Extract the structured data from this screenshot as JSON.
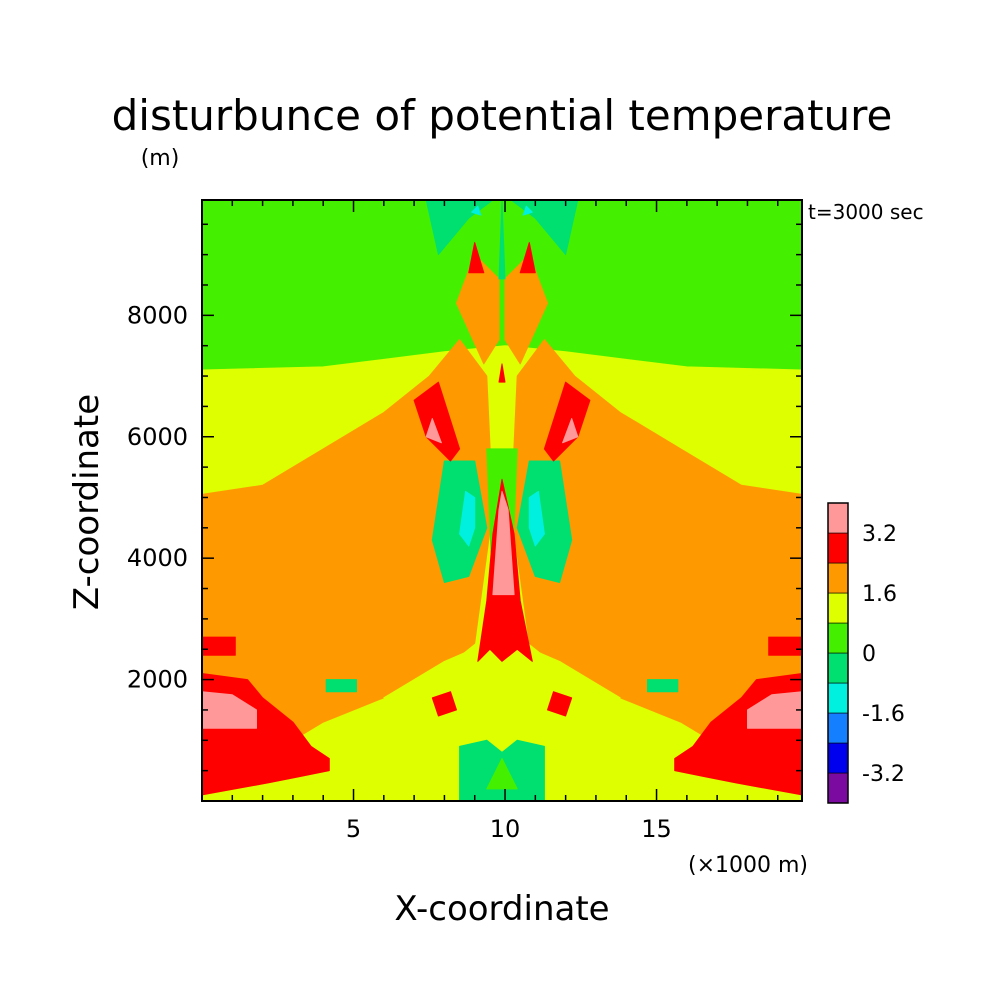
{
  "chart_data": {
    "type": "heatmap",
    "title": "disturbunce of potential temperature",
    "ylabel": "Z-coordinate",
    "yunit": "(m)",
    "xlabel": "X-coordinate",
    "xunit": "(×1000 m)",
    "annotation": "t=3000 sec",
    "xlim": [
      0,
      19.8
    ],
    "ylim": [
      0,
      9900
    ],
    "xticks": [
      5,
      10,
      15
    ],
    "xtick_labels": [
      "5",
      "10",
      "15"
    ],
    "yticks": [
      2000,
      4000,
      6000,
      8000
    ],
    "ytick_labels": [
      "2000",
      "4000",
      "6000",
      "8000"
    ],
    "grid": false,
    "colorbar": {
      "levels": [
        -4.0,
        -3.2,
        -2.4,
        -1.6,
        -0.8,
        0,
        0.8,
        1.6,
        2.4,
        3.2,
        4.0
      ],
      "labels": [
        "-3.2",
        "-1.6",
        "0",
        "1.6",
        "3.2"
      ],
      "label_values": [
        -3.2,
        -1.6,
        0,
        1.6,
        3.2
      ],
      "colors": [
        "#7a0aa0",
        "#0000ee",
        "#1480ff",
        "#00f0e0",
        "#00e070",
        "#44f000",
        "#ddff00",
        "#ff9900",
        "#ff0000",
        "#ff9999"
      ]
    },
    "regions": [
      {
        "value": 0.4,
        "shape": "rect",
        "x": [
          0,
          19.8
        ],
        "z": [
          0,
          9900
        ]
      },
      {
        "value": 1.2,
        "shape": "poly",
        "pts": [
          [
            0,
            0
          ],
          [
            19.8,
            0
          ],
          [
            19.8,
            7100
          ],
          [
            16,
            7150
          ],
          [
            12,
            7400
          ],
          [
            10,
            7500
          ],
          [
            8,
            7400
          ],
          [
            4,
            7150
          ],
          [
            0,
            7100
          ]
        ]
      },
      {
        "value": 2.0,
        "shape": "poly",
        "pts": [
          [
            0,
            200
          ],
          [
            0,
            5050
          ],
          [
            2,
            5200
          ],
          [
            4,
            5800
          ],
          [
            6,
            6400
          ],
          [
            7.5,
            7000
          ],
          [
            8.5,
            7600
          ],
          [
            9.4,
            7000
          ],
          [
            9.6,
            4800
          ],
          [
            9.0,
            2600
          ],
          [
            7.5,
            2000
          ],
          [
            6,
            1700
          ],
          [
            4,
            1300
          ],
          [
            3,
            1000
          ],
          [
            2.2,
            600
          ],
          [
            1.5,
            300
          ]
        ]
      },
      {
        "value": 2.0,
        "shape": "poly",
        "pts": [
          [
            19.8,
            200
          ],
          [
            19.8,
            5050
          ],
          [
            17.8,
            5200
          ],
          [
            15.8,
            5800
          ],
          [
            13.8,
            6400
          ],
          [
            12.3,
            7000
          ],
          [
            11.3,
            7600
          ],
          [
            10.4,
            7000
          ],
          [
            10.2,
            4800
          ],
          [
            10.8,
            2600
          ],
          [
            12.3,
            2000
          ],
          [
            13.8,
            1700
          ],
          [
            15.8,
            1300
          ],
          [
            16.8,
            1000
          ],
          [
            17.6,
            600
          ],
          [
            18.3,
            300
          ]
        ]
      },
      {
        "value": 2.0,
        "shape": "poly",
        "pts": [
          [
            8.4,
            8200
          ],
          [
            9.0,
            9000
          ],
          [
            9.8,
            8600
          ],
          [
            9.8,
            7600
          ],
          [
            9.3,
            7200
          ]
        ]
      },
      {
        "value": 2.0,
        "shape": "poly",
        "pts": [
          [
            11.4,
            8200
          ],
          [
            10.8,
            9000
          ],
          [
            10.0,
            8600
          ],
          [
            10.0,
            7600
          ],
          [
            10.5,
            7200
          ]
        ]
      },
      {
        "value": 0.4,
        "shape": "poly",
        "pts": [
          [
            9.4,
            5800
          ],
          [
            10.4,
            5800
          ],
          [
            10.2,
            3300
          ],
          [
            9.9,
            2800
          ],
          [
            9.6,
            3300
          ]
        ]
      },
      {
        "value": 1.2,
        "shape": "poly",
        "pts": [
          [
            6,
            1700
          ],
          [
            8,
            1500
          ],
          [
            9.4,
            1200
          ],
          [
            9.8,
            1800
          ],
          [
            9.4,
            2600
          ],
          [
            8.0,
            2300
          ]
        ]
      },
      {
        "value": 1.2,
        "shape": "poly",
        "pts": [
          [
            13.8,
            1700
          ],
          [
            11.8,
            1500
          ],
          [
            10.4,
            1200
          ],
          [
            10.0,
            1800
          ],
          [
            10.4,
            2600
          ],
          [
            11.8,
            2300
          ]
        ]
      },
      {
        "value": -0.4,
        "shape": "poly",
        "pts": [
          [
            7.6,
            4300
          ],
          [
            8.0,
            5600
          ],
          [
            9.0,
            5600
          ],
          [
            9.4,
            4500
          ],
          [
            8.8,
            3700
          ],
          [
            8.0,
            3600
          ]
        ]
      },
      {
        "value": -0.4,
        "shape": "poly",
        "pts": [
          [
            12.2,
            4300
          ],
          [
            11.8,
            5600
          ],
          [
            10.8,
            5600
          ],
          [
            10.4,
            4500
          ],
          [
            11.0,
            3700
          ],
          [
            11.8,
            3600
          ]
        ]
      },
      {
        "value": -1.2,
        "shape": "poly",
        "pts": [
          [
            8.5,
            4400
          ],
          [
            8.7,
            5100
          ],
          [
            9.0,
            5000
          ],
          [
            9.0,
            4500
          ],
          [
            8.8,
            4200
          ]
        ]
      },
      {
        "value": -1.2,
        "shape": "poly",
        "pts": [
          [
            11.3,
            4400
          ],
          [
            11.1,
            5100
          ],
          [
            10.8,
            5000
          ],
          [
            10.8,
            4500
          ],
          [
            11.0,
            4200
          ]
        ]
      },
      {
        "value": -0.4,
        "shape": "poly",
        "pts": [
          [
            4.1,
            2000
          ],
          [
            5.1,
            2000
          ],
          [
            5.1,
            1800
          ],
          [
            4.1,
            1800
          ]
        ]
      },
      {
        "value": -0.4,
        "shape": "poly",
        "pts": [
          [
            14.7,
            2000
          ],
          [
            15.7,
            2000
          ],
          [
            15.7,
            1800
          ],
          [
            14.7,
            1800
          ]
        ]
      },
      {
        "value": -0.4,
        "shape": "poly",
        "pts": [
          [
            8.5,
            0
          ],
          [
            8.5,
            900
          ],
          [
            9.4,
            1000
          ],
          [
            9.9,
            800
          ],
          [
            10.4,
            1000
          ],
          [
            11.3,
            900
          ],
          [
            11.3,
            0
          ]
        ]
      },
      {
        "value": 0.4,
        "shape": "poly",
        "pts": [
          [
            9.4,
            200
          ],
          [
            9.9,
            700
          ],
          [
            10.4,
            200
          ]
        ]
      },
      {
        "value": 2.8,
        "shape": "poly",
        "pts": [
          [
            0,
            100
          ],
          [
            0,
            2100
          ],
          [
            1.5,
            2000
          ],
          [
            2.0,
            1700
          ],
          [
            3.0,
            1300
          ],
          [
            3.6,
            900
          ],
          [
            4.2,
            700
          ],
          [
            4.2,
            500
          ],
          [
            3.2,
            400
          ],
          [
            2.2,
            300
          ]
        ]
      },
      {
        "value": 2.8,
        "shape": "poly",
        "pts": [
          [
            19.8,
            100
          ],
          [
            19.8,
            2100
          ],
          [
            18.3,
            2000
          ],
          [
            17.8,
            1700
          ],
          [
            16.8,
            1300
          ],
          [
            16.2,
            900
          ],
          [
            15.6,
            700
          ],
          [
            15.6,
            500
          ],
          [
            16.6,
            400
          ],
          [
            17.6,
            300
          ]
        ]
      },
      {
        "value": 3.6,
        "shape": "poly",
        "pts": [
          [
            0,
            1200
          ],
          [
            0,
            1800
          ],
          [
            1.0,
            1750
          ],
          [
            1.8,
            1500
          ],
          [
            1.8,
            1200
          ]
        ]
      },
      {
        "value": 3.6,
        "shape": "poly",
        "pts": [
          [
            19.8,
            1200
          ],
          [
            19.8,
            1800
          ],
          [
            18.8,
            1750
          ],
          [
            18.0,
            1500
          ],
          [
            18.0,
            1200
          ]
        ]
      },
      {
        "value": 2.8,
        "shape": "poly",
        "pts": [
          [
            0,
            2400
          ],
          [
            0,
            2700
          ],
          [
            1.1,
            2700
          ],
          [
            1.1,
            2400
          ]
        ]
      },
      {
        "value": 2.8,
        "shape": "poly",
        "pts": [
          [
            19.8,
            2400
          ],
          [
            19.8,
            2700
          ],
          [
            18.7,
            2700
          ],
          [
            18.7,
            2400
          ]
        ]
      },
      {
        "value": 2.8,
        "shape": "poly",
        "pts": [
          [
            9.1,
            2300
          ],
          [
            9.4,
            3300
          ],
          [
            9.6,
            4400
          ],
          [
            9.9,
            5300
          ],
          [
            10.3,
            4400
          ],
          [
            10.5,
            3300
          ],
          [
            10.9,
            2300
          ],
          [
            10.4,
            2500
          ],
          [
            9.9,
            2300
          ],
          [
            9.5,
            2500
          ]
        ]
      },
      {
        "value": 3.6,
        "shape": "poly",
        "pts": [
          [
            9.6,
            3400
          ],
          [
            9.8,
            4800
          ],
          [
            9.9,
            5100
          ],
          [
            10.1,
            4800
          ],
          [
            10.3,
            3400
          ]
        ]
      },
      {
        "value": 2.8,
        "shape": "poly",
        "pts": [
          [
            7.0,
            6600
          ],
          [
            7.8,
            6900
          ],
          [
            8.5,
            5800
          ],
          [
            8.2,
            5600
          ],
          [
            7.4,
            6000
          ]
        ]
      },
      {
        "value": 2.8,
        "shape": "poly",
        "pts": [
          [
            12.8,
            6600
          ],
          [
            12.0,
            6900
          ],
          [
            11.3,
            5800
          ],
          [
            11.6,
            5600
          ],
          [
            12.4,
            6000
          ]
        ]
      },
      {
        "value": 3.6,
        "shape": "poly",
        "pts": [
          [
            7.4,
            6000
          ],
          [
            7.6,
            6300
          ],
          [
            7.9,
            5900
          ]
        ]
      },
      {
        "value": 3.6,
        "shape": "poly",
        "pts": [
          [
            12.4,
            6000
          ],
          [
            12.2,
            6300
          ],
          [
            11.9,
            5900
          ]
        ]
      },
      {
        "value": 2.8,
        "shape": "poly",
        "pts": [
          [
            8.8,
            8700
          ],
          [
            9.0,
            9200
          ],
          [
            9.3,
            8700
          ]
        ]
      },
      {
        "value": 2.8,
        "shape": "poly",
        "pts": [
          [
            11.0,
            8700
          ],
          [
            10.8,
            9200
          ],
          [
            10.5,
            8700
          ]
        ]
      },
      {
        "value": 2.8,
        "shape": "poly",
        "pts": [
          [
            7.6,
            1700
          ],
          [
            8.2,
            1800
          ],
          [
            8.4,
            1500
          ],
          [
            7.8,
            1400
          ]
        ]
      },
      {
        "value": 2.8,
        "shape": "poly",
        "pts": [
          [
            12.2,
            1700
          ],
          [
            11.6,
            1800
          ],
          [
            11.4,
            1500
          ],
          [
            12.0,
            1400
          ]
        ]
      },
      {
        "value": -0.4,
        "shape": "poly",
        "pts": [
          [
            7.4,
            9900
          ],
          [
            7.8,
            9000
          ],
          [
            8.8,
            9600
          ],
          [
            9.6,
            9900
          ]
        ]
      },
      {
        "value": -0.4,
        "shape": "poly",
        "pts": [
          [
            12.4,
            9900
          ],
          [
            12.0,
            9000
          ],
          [
            11.0,
            9600
          ],
          [
            10.2,
            9900
          ]
        ]
      },
      {
        "value": -0.4,
        "shape": "poly",
        "pts": [
          [
            9.8,
            8600
          ],
          [
            9.9,
            9900
          ],
          [
            10.0,
            8600
          ]
        ]
      },
      {
        "value": -1.2,
        "shape": "poly",
        "pts": [
          [
            8.9,
            9700
          ],
          [
            9.1,
            9800
          ],
          [
            9.2,
            9650
          ]
        ]
      },
      {
        "value": -1.2,
        "shape": "poly",
        "pts": [
          [
            10.9,
            9700
          ],
          [
            10.7,
            9800
          ],
          [
            10.6,
            9650
          ]
        ]
      },
      {
        "value": 2.8,
        "shape": "poly",
        "pts": [
          [
            9.8,
            6900
          ],
          [
            9.9,
            7200
          ],
          [
            10.0,
            6900
          ]
        ]
      }
    ]
  }
}
